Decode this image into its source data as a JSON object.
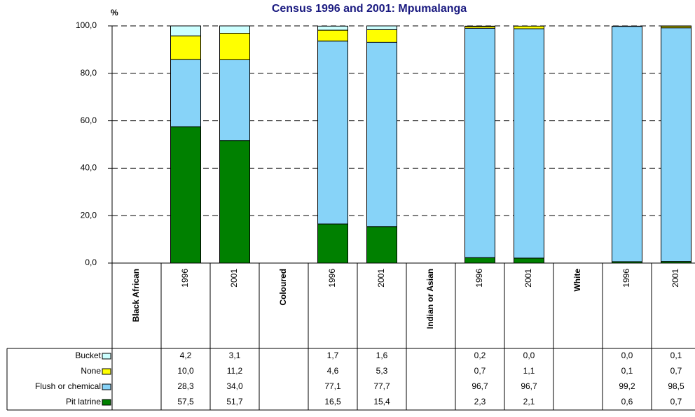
{
  "chart_data": {
    "type": "stacked_bar",
    "title": "Census 1996 and 2001: Mpumalanga",
    "y_label": "%",
    "categories": [
      "Black African",
      "1996",
      "2001",
      "Coloured",
      "1996",
      "2001",
      "Indian or Asian",
      "1996",
      "2001",
      "White",
      "1996",
      "2001"
    ],
    "series": [
      {
        "name": "Bucket",
        "color": "#ccffff",
        "values": [
          null,
          4.2,
          3.1,
          null,
          1.7,
          1.6,
          null,
          0.2,
          0.0,
          null,
          0.0,
          0.1
        ],
        "value_labels": [
          null,
          "4,2",
          "3,1",
          null,
          "1,7",
          "1,6",
          null,
          "0,2",
          "0,0",
          null,
          "0,0",
          "0,1"
        ]
      },
      {
        "name": "None",
        "color": "#ffff00",
        "values": [
          null,
          10.0,
          11.2,
          null,
          4.6,
          5.3,
          null,
          0.7,
          1.1,
          null,
          0.1,
          0.7
        ],
        "value_labels": [
          null,
          "10,0",
          "11,2",
          null,
          "4,6",
          "5,3",
          null,
          "0,7",
          "1,1",
          null,
          "0,1",
          "0,7"
        ]
      },
      {
        "name": "Flush or chemical",
        "color": "#87d3f8",
        "values": [
          null,
          28.3,
          34.0,
          null,
          77.1,
          77.7,
          null,
          96.7,
          96.7,
          null,
          99.2,
          98.5
        ],
        "value_labels": [
          null,
          "28,3",
          "34,0",
          null,
          "77,1",
          "77,7",
          null,
          "96,7",
          "96,7",
          null,
          "99,2",
          "98,5"
        ]
      },
      {
        "name": "Pit latrine",
        "color": "#008000",
        "values": [
          null,
          57.5,
          51.7,
          null,
          16.5,
          15.4,
          null,
          2.3,
          2.1,
          null,
          0.6,
          0.7
        ],
        "value_labels": [
          null,
          "57,5",
          "51,7",
          null,
          "16,5",
          "15,4",
          null,
          "2,3",
          "2,1",
          null,
          "0,6",
          "0,7"
        ]
      }
    ],
    "ylim": [
      0,
      100
    ],
    "yticks": [
      {
        "value": 0,
        "label": "0,0"
      },
      {
        "value": 20,
        "label": "20,0"
      },
      {
        "value": 40,
        "label": "40,0"
      },
      {
        "value": 60,
        "label": "60,0"
      },
      {
        "value": 80,
        "label": "80,0"
      },
      {
        "value": 100,
        "label": "100,0"
      }
    ],
    "grid": true
  }
}
